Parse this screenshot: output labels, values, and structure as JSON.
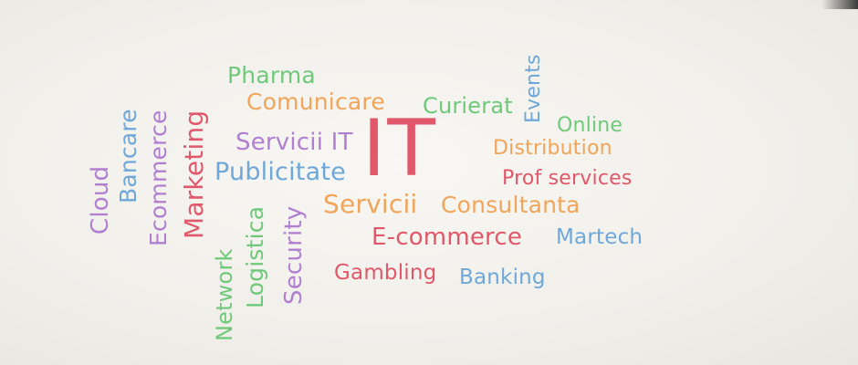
{
  "colors": {
    "green": "#6fc97a",
    "orange": "#f0a55a",
    "purple": "#b07fd0",
    "red": "#e0586a",
    "blue": "#6fa8d8"
  },
  "words": {
    "pharma": "Pharma",
    "comunicare": "Comunicare",
    "curierat": "Curierat",
    "events": "Events",
    "online": "Online",
    "servicii_it": "Servicii IT",
    "it": "IT",
    "distribution": "Distribution",
    "publicitate": "Publicitate",
    "prof_services": "Prof services",
    "servicii": "Servicii",
    "consultanta": "Consultanta",
    "e_commerce": "E-commerce",
    "martech": "Martech",
    "gambling": "Gambling",
    "banking": "Banking",
    "cloud": "Cloud",
    "bancare": "Bancare",
    "ecommerce_vertical": "Ecommerce",
    "marketing": "Marketing",
    "network": "Network",
    "logistica": "Logistica",
    "security": "Security"
  }
}
